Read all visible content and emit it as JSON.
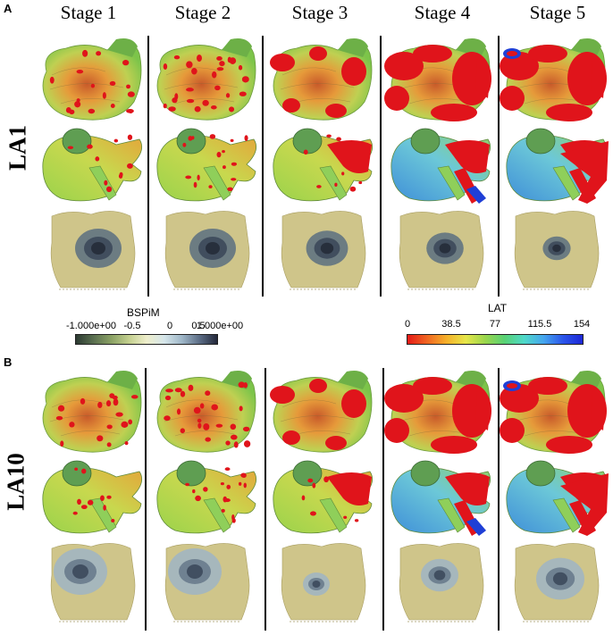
{
  "panels": {
    "A": {
      "letter": "A",
      "row_label": "LA1"
    },
    "B": {
      "letter": "B",
      "row_label": "LA10"
    }
  },
  "stages": [
    "Stage 1",
    "Stage 2",
    "Stage 3",
    "Stage 4",
    "Stage 5"
  ],
  "colorbars": {
    "bspim": {
      "title": "BSPiM",
      "ticks": [
        "-1.000e+00",
        "-0.5",
        "0",
        "0.5",
        "1.000e+00"
      ]
    },
    "lat": {
      "title": "LAT",
      "ticks": [
        "0",
        "38.5",
        "77",
        "115.5",
        "154"
      ]
    }
  },
  "colors": {
    "activation_red": "#e0141b",
    "healthy_green": "#7cc44a",
    "late_blue": "#1f3fd6",
    "torso_beige": "#cfc58a",
    "torso_dark": "#2c3440"
  }
}
